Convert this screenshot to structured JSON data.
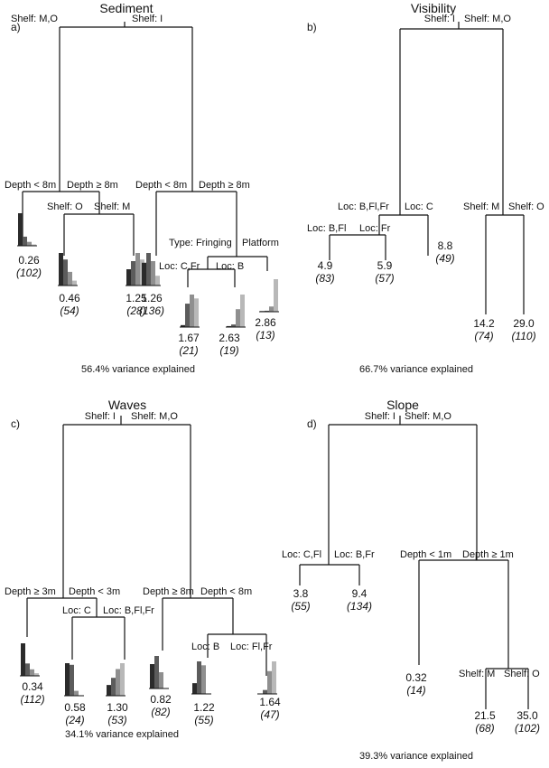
{
  "figure": {
    "panels": [
      {
        "id": "sediment",
        "letter": "a)",
        "title": "Sediment",
        "footer": "56.4% variance explained",
        "splits": {
          "root_left": "Shelf: M,O",
          "root_right": "Shelf: I",
          "l_left": "Depth < 8m",
          "l_right": "Depth ≥ 8m",
          "lr_left": "Shelf: O",
          "lr_right": "Shelf: M",
          "r_left": "Depth < 8m",
          "r_right": "Depth ≥ 8m",
          "rr_left": "Type: Fringing",
          "rr_right": "Platform",
          "rrl_left": "Loc: C,Fr",
          "rrl_right": "Loc: B"
        },
        "leaves": [
          {
            "value": "0.26",
            "n": "(102)",
            "bars": [
              1.0,
              0.28,
              0.12,
              0.04
            ]
          },
          {
            "value": "0.46",
            "n": "(54)",
            "bars": [
              1.0,
              0.8,
              0.42,
              0.15
            ]
          },
          {
            "value": "1.25",
            "n": "(28)",
            "bars": [
              0.5,
              0.75,
              1.0,
              0.8
            ]
          },
          {
            "value": "1.26",
            "n": "(136)",
            "bars": [
              0.7,
              1.0,
              0.75,
              0.3
            ]
          },
          {
            "value": "1.67",
            "n": "(21)",
            "bars": [
              0.06,
              0.72,
              1.0,
              0.88
            ]
          },
          {
            "value": "2.63",
            "n": "(19)",
            "bars": [
              0.03,
              0.08,
              0.55,
              1.0
            ]
          },
          {
            "value": "2.86",
            "n": "(13)",
            "bars": [
              0.02,
              0.03,
              0.16,
              1.0
            ]
          }
        ]
      },
      {
        "id": "visibility",
        "letter": "b)",
        "title": "Visibility",
        "footer": "66.7% variance explained",
        "splits": {
          "root_left": "Shelf: I",
          "root_right": "Shelf: M,O",
          "l_left": "Loc: B,Fl,Fr",
          "l_right": "Loc: C",
          "ll_left": "Loc: B,Fl",
          "ll_right": "Loc: Fr",
          "r_left": "Shelf: M",
          "r_right": "Shelf: O"
        },
        "leaves": [
          {
            "value": "4.9",
            "n": "(83)"
          },
          {
            "value": "5.9",
            "n": "(57)"
          },
          {
            "value": "8.8",
            "n": "(49)"
          },
          {
            "value": "14.2",
            "n": "(74)"
          },
          {
            "value": "29.0",
            "n": "(110)"
          }
        ]
      },
      {
        "id": "waves",
        "letter": "c)",
        "title": "Waves",
        "footer": "34.1% variance explained",
        "splits": {
          "root_left": "Shelf: I",
          "root_right": "Shelf: M,O",
          "l_left": "Depth ≥ 3m",
          "l_right": "Depth < 3m",
          "lr_left": "Loc: C",
          "lr_right": "Loc: B,Fl,Fr",
          "r_left": "Depth ≥ 8m",
          "r_right": "Depth < 8m",
          "rr_left": "Loc: B",
          "rr_right": "Loc: Fl,Fr"
        },
        "leaves": [
          {
            "value": "0.34",
            "n": "(112)",
            "bars": [
              1.0,
              0.38,
              0.2,
              0.08
            ]
          },
          {
            "value": "0.58",
            "n": "(24)",
            "bars": [
              1.0,
              0.95,
              0.15,
              0.0
            ]
          },
          {
            "value": "1.30",
            "n": "(53)",
            "bars": [
              0.33,
              0.55,
              0.82,
              1.0
            ]
          },
          {
            "value": "0.82",
            "n": "(82)",
            "bars": [
              0.75,
              1.0,
              0.5,
              0.0
            ]
          },
          {
            "value": "1.22",
            "n": "(55)",
            "bars": [
              0.33,
              1.0,
              0.88,
              0.0
            ]
          },
          {
            "value": "1.64",
            "n": "(47)",
            "bars": [
              0.0,
              0.12,
              0.7,
              1.0
            ]
          }
        ]
      },
      {
        "id": "slope",
        "letter": "d)",
        "title": "Slope",
        "footer": "39.3% variance explained",
        "splits": {
          "root_left": "Shelf: I",
          "root_right": "Shelf: M,O",
          "l_left": "Loc: C,Fl",
          "l_right": "Loc: B,Fr",
          "r_left": "Depth < 1m",
          "r_right": "Depth ≥ 1m",
          "rr_left": "Shelf: M",
          "rr_right": "Shelf: O"
        },
        "leaves": [
          {
            "value": "3.8",
            "n": "(55)"
          },
          {
            "value": "9.4",
            "n": "(134)"
          },
          {
            "value": "0.32",
            "n": "(14)"
          },
          {
            "value": "21.5",
            "n": "(68)"
          },
          {
            "value": "35.0",
            "n": "(102)"
          }
        ]
      }
    ],
    "bar_colors": [
      "#2b2b2b",
      "#5c5c5c",
      "#8f8f8f",
      "#b8b8b8"
    ]
  }
}
